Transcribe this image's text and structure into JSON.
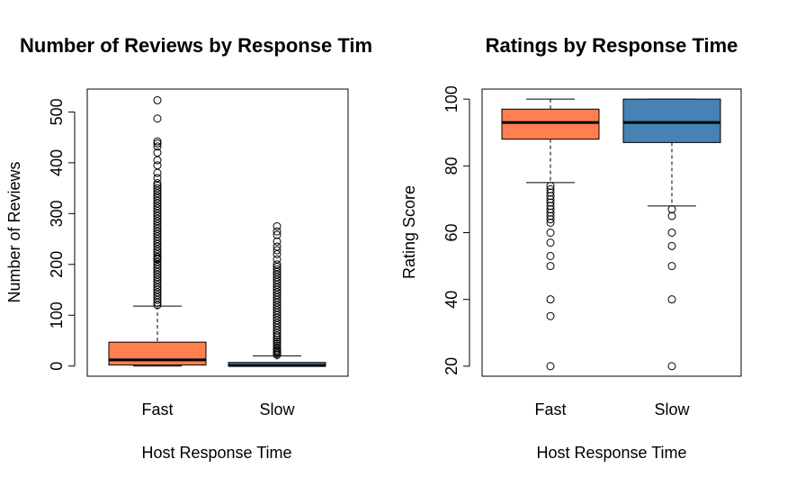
{
  "chart_data": [
    {
      "type": "boxplot",
      "title": "Number of Reviews by Response Tim",
      "xlabel": "Host Response Time",
      "ylabel": "Number of Reviews",
      "categories": [
        "Fast",
        "Slow"
      ],
      "ylim": [
        -20,
        545
      ],
      "yticks": [
        0,
        100,
        200,
        300,
        400,
        500
      ],
      "colors": [
        "#ff7f50",
        "#4682b4"
      ],
      "boxes": [
        {
          "name": "Fast",
          "min": 0,
          "q1": 2,
          "median": 12,
          "q3": 47,
          "max": 118,
          "outliers": [
            120,
            125,
            130,
            135,
            140,
            145,
            150,
            155,
            160,
            165,
            170,
            175,
            180,
            185,
            190,
            195,
            200,
            205,
            210,
            212,
            215,
            220,
            225,
            230,
            235,
            240,
            245,
            250,
            255,
            260,
            265,
            270,
            275,
            280,
            285,
            290,
            295,
            300,
            305,
            310,
            315,
            320,
            325,
            330,
            335,
            340,
            345,
            350,
            355,
            360,
            370,
            380,
            395,
            405,
            420,
            432,
            438,
            442,
            487,
            523
          ]
        },
        {
          "name": "Slow",
          "min": 0,
          "q1": 0,
          "median": 1,
          "q3": 7,
          "max": 20,
          "outliers": [
            22,
            25,
            28,
            30,
            33,
            36,
            40,
            44,
            48,
            52,
            56,
            60,
            65,
            70,
            75,
            80,
            85,
            90,
            95,
            100,
            105,
            110,
            115,
            120,
            125,
            130,
            135,
            140,
            145,
            150,
            155,
            160,
            165,
            170,
            175,
            180,
            185,
            190,
            195,
            200,
            210,
            220,
            228,
            235,
            245,
            258,
            265,
            275
          ]
        }
      ]
    },
    {
      "type": "boxplot",
      "title": "Ratings by Response Time",
      "xlabel": "Host Response Time",
      "ylabel": "Rating Score",
      "categories": [
        "Fast",
        "Slow"
      ],
      "ylim": [
        17,
        103
      ],
      "yticks": [
        20,
        40,
        60,
        80,
        100
      ],
      "colors": [
        "#ff7f50",
        "#4682b4"
      ],
      "boxes": [
        {
          "name": "Fast",
          "min": 75,
          "q1": 88,
          "median": 93,
          "q3": 97,
          "max": 100,
          "outliers": [
            74,
            73,
            72,
            71,
            70,
            69,
            68,
            67,
            66,
            65,
            64,
            63,
            60,
            57,
            53,
            50,
            40,
            35,
            20
          ]
        },
        {
          "name": "Slow",
          "min": 68,
          "q1": 87,
          "median": 93,
          "q3": 100,
          "max": 100,
          "outliers": [
            67,
            65,
            60,
            56,
            50,
            40,
            20
          ]
        }
      ]
    }
  ]
}
